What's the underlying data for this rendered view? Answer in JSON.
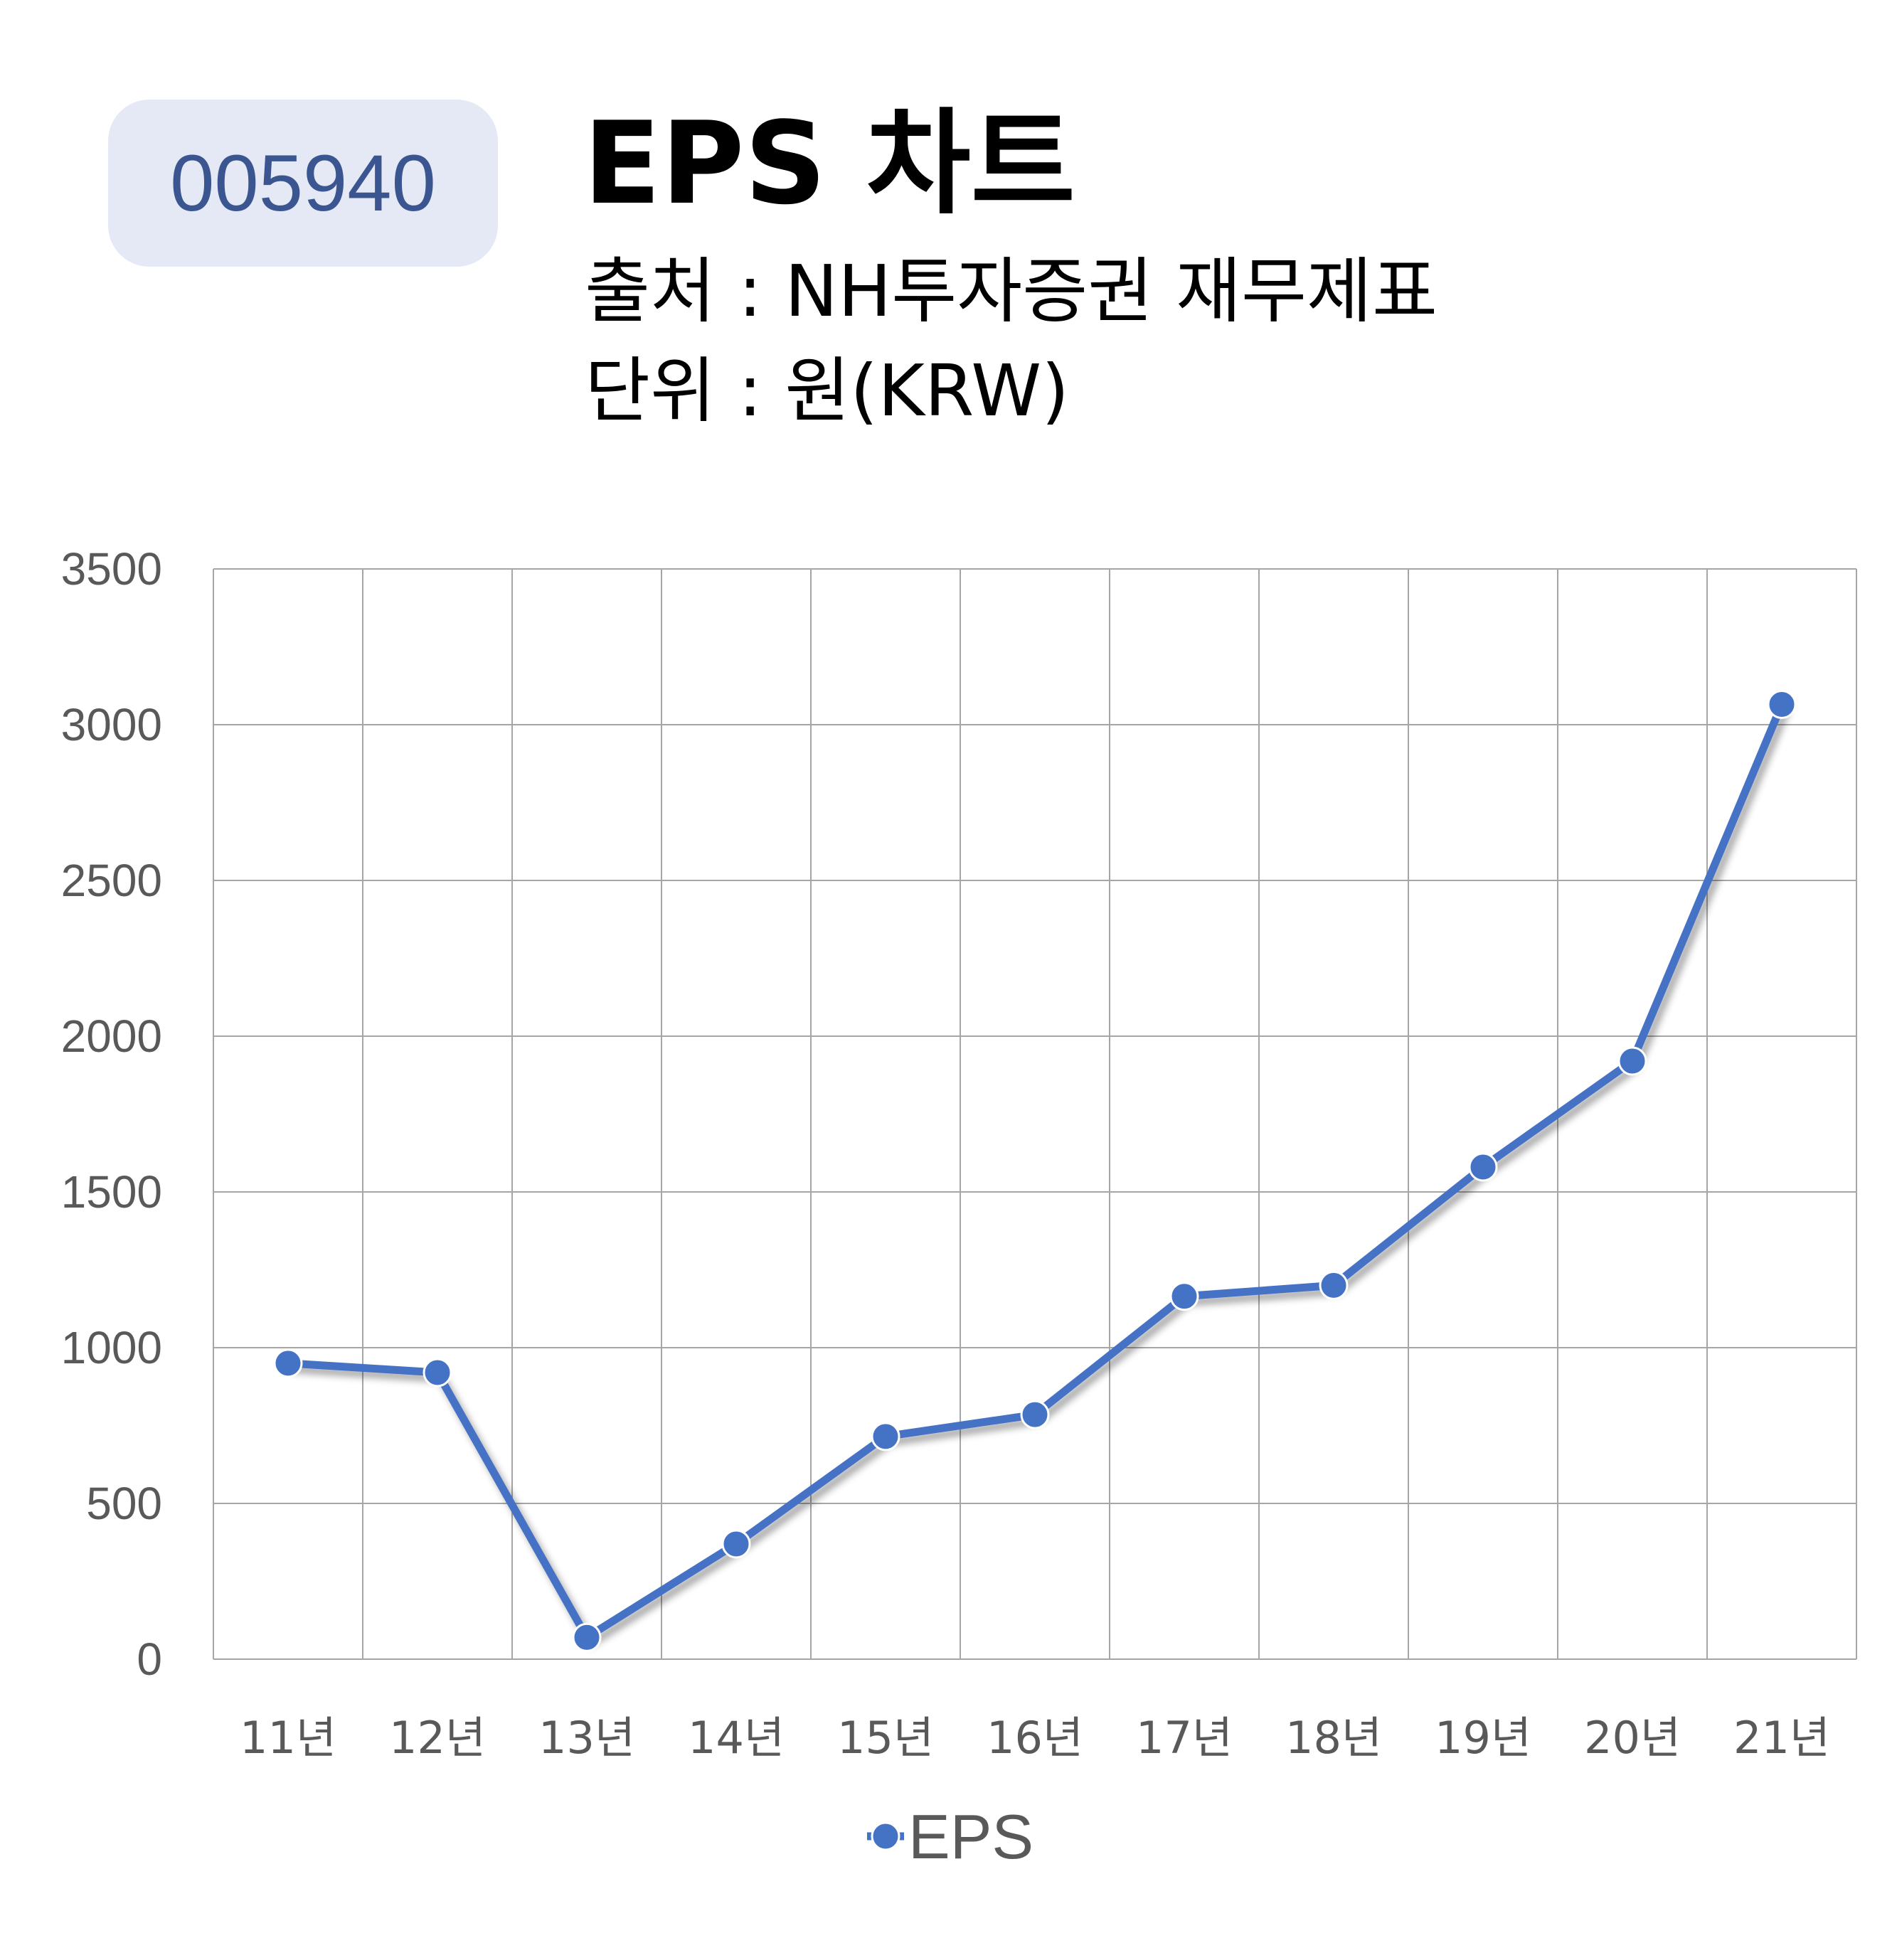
{
  "header": {
    "code": "005940",
    "title": "EPS 차트",
    "source": "출처 : NH투자증권 재무제표",
    "unit": "단위 : 원(KRW)"
  },
  "colors": {
    "series": "#4472c4",
    "badge_bg": "#e4e9f5",
    "badge_text": "#3a5590",
    "grid": "#a6a6a6",
    "axis_text": "#595959"
  },
  "chart_data": {
    "type": "line",
    "title": "EPS 차트",
    "categories": [
      "11년",
      "12년",
      "13년",
      "14년",
      "15년",
      "16년",
      "17년",
      "18년",
      "19년",
      "20년",
      "21년"
    ],
    "series": [
      {
        "name": "EPS",
        "values": [
          950,
          920,
          70,
          370,
          715,
          785,
          1165,
          1200,
          1580,
          1920,
          3065
        ]
      }
    ],
    "ylim": [
      0,
      3500
    ],
    "yticks": [
      0,
      500,
      1000,
      1500,
      2000,
      2500,
      3000,
      3500
    ],
    "grid": true,
    "legend": "bottom",
    "markers": true
  }
}
